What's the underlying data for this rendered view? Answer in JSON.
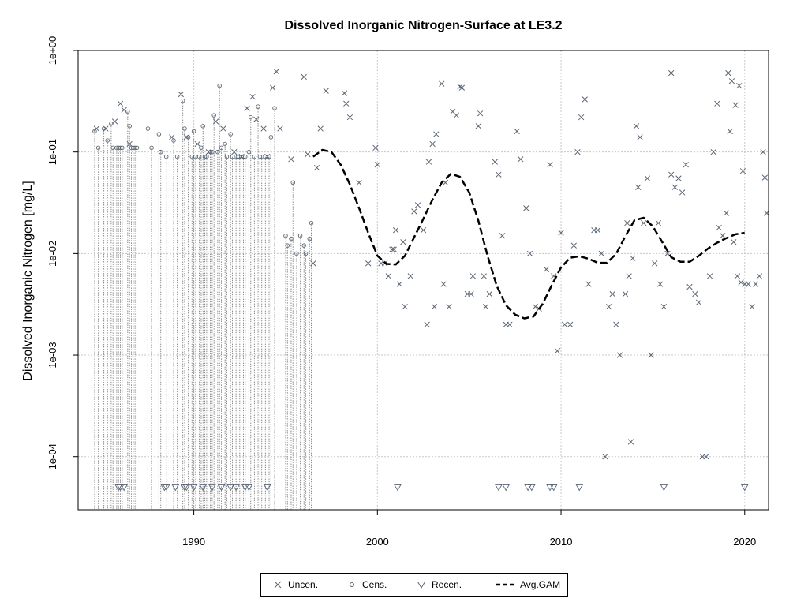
{
  "chart_data": {
    "type": "scatter",
    "title": "Dissolved Inorganic Nitrogen-Surface at LE3.2",
    "ylabel": "Dissolved Inorganic Nitrogen [mg/L]",
    "xlabel": "",
    "y_scale": "log",
    "ylim": [
      3e-05,
      1.0
    ],
    "xlim": [
      1983.7,
      2021.3
    ],
    "x_ticks": [
      1990,
      2000,
      2010,
      2020
    ],
    "x_tick_labels": [
      "1990",
      "2000",
      "2010",
      "2020"
    ],
    "y_ticks": [
      0.0001,
      0.001,
      0.01,
      0.1,
      1
    ],
    "y_tick_labels": [
      "1e-04",
      "1e-03",
      "1e-02",
      "1e-01",
      "1e+00"
    ],
    "grid": true,
    "legend_position": "bottom",
    "legend": [
      "Uncen.",
      "Cens.",
      "Recen.",
      "Avg.GAM"
    ],
    "colors": {
      "points": "#5b6675",
      "censored_lines": "#8c8c8c",
      "gam": "#000000",
      "grid": "#c8c8c8"
    },
    "uncensored": [
      [
        1984.7,
        0.17
      ],
      [
        1985.2,
        0.17
      ],
      [
        1985.7,
        0.2
      ],
      [
        1986.0,
        0.3
      ],
      [
        1986.2,
        0.26
      ],
      [
        1986.5,
        0.12
      ],
      [
        1988.8,
        0.14
      ],
      [
        1989.3,
        0.37
      ],
      [
        1989.6,
        0.14
      ],
      [
        1990.2,
        0.12
      ],
      [
        1990.8,
        0.1
      ],
      [
        1991.2,
        0.2
      ],
      [
        1991.6,
        0.17
      ],
      [
        1992.2,
        0.1
      ],
      [
        1992.6,
        0.09
      ],
      [
        1992.9,
        0.27
      ],
      [
        1993.2,
        0.35
      ],
      [
        1993.4,
        0.21
      ],
      [
        1993.8,
        0.17
      ],
      [
        1994.0,
        0.09
      ],
      [
        1994.3,
        0.43
      ],
      [
        1994.5,
        0.62
      ],
      [
        1994.7,
        0.17
      ],
      [
        1995.3,
        0.085
      ],
      [
        1996.0,
        0.55
      ],
      [
        1996.2,
        0.095
      ],
      [
        1996.5,
        0.008
      ],
      [
        1996.7,
        0.07
      ],
      [
        1996.9,
        0.17
      ],
      [
        1997.2,
        0.4
      ],
      [
        1998.2,
        0.38
      ],
      [
        1998.3,
        0.3
      ],
      [
        1998.5,
        0.22
      ],
      [
        1999.0,
        0.05
      ],
      [
        1999.5,
        0.008
      ],
      [
        1999.9,
        0.11
      ],
      [
        2000.0,
        0.075
      ],
      [
        2000.2,
        0.008
      ],
      [
        2000.4,
        0.008
      ],
      [
        2000.6,
        0.006
      ],
      [
        2000.8,
        0.011
      ],
      [
        2000.9,
        0.011
      ],
      [
        2001.0,
        0.017
      ],
      [
        2001.2,
        0.005
      ],
      [
        2001.4,
        0.013
      ],
      [
        2001.5,
        0.003
      ],
      [
        2001.8,
        0.006
      ],
      [
        2002.0,
        0.026
      ],
      [
        2002.2,
        0.03
      ],
      [
        2002.5,
        0.017
      ],
      [
        2002.7,
        0.002
      ],
      [
        2002.8,
        0.08
      ],
      [
        2003.0,
        0.12
      ],
      [
        2003.1,
        0.003
      ],
      [
        2003.2,
        0.15
      ],
      [
        2003.5,
        0.47
      ],
      [
        2003.6,
        0.005
      ],
      [
        2003.7,
        0.05
      ],
      [
        2003.9,
        0.003
      ],
      [
        2004.1,
        0.25
      ],
      [
        2004.3,
        0.23
      ],
      [
        2004.5,
        0.44
      ],
      [
        2004.6,
        0.43
      ],
      [
        2004.9,
        0.004
      ],
      [
        2005.1,
        0.004
      ],
      [
        2005.2,
        0.006
      ],
      [
        2005.5,
        0.18
      ],
      [
        2005.6,
        0.24
      ],
      [
        2005.8,
        0.006
      ],
      [
        2005.9,
        0.003
      ],
      [
        2006.1,
        0.004
      ],
      [
        2006.4,
        0.08
      ],
      [
        2006.6,
        0.06
      ],
      [
        2006.8,
        0.015
      ],
      [
        2007.0,
        0.002
      ],
      [
        2007.2,
        0.002
      ],
      [
        2007.6,
        0.16
      ],
      [
        2007.8,
        0.085
      ],
      [
        2008.1,
        0.028
      ],
      [
        2008.3,
        0.01
      ],
      [
        2008.6,
        0.003
      ],
      [
        2008.8,
        0.00286
      ],
      [
        2009.2,
        0.007
      ],
      [
        2009.4,
        0.075
      ],
      [
        2009.6,
        0.006
      ],
      [
        2009.8,
        0.0011
      ],
      [
        2010.0,
        0.016
      ],
      [
        2010.2,
        0.002
      ],
      [
        2010.5,
        0.002
      ],
      [
        2010.7,
        0.012
      ],
      [
        2010.9,
        0.1
      ],
      [
        2011.1,
        0.22
      ],
      [
        2011.3,
        0.33
      ],
      [
        2011.5,
        0.005
      ],
      [
        2011.8,
        0.017
      ],
      [
        2012.0,
        0.017
      ],
      [
        2012.2,
        0.01
      ],
      [
        2012.6,
        0.003
      ],
      [
        2012.8,
        0.004
      ],
      [
        2013.0,
        0.002
      ],
      [
        2013.2,
        0.001
      ],
      [
        2013.5,
        0.004
      ],
      [
        2013.7,
        0.006
      ],
      [
        2013.8,
        0.00014
      ],
      [
        2014.1,
        0.18
      ],
      [
        2014.3,
        0.14
      ],
      [
        2014.5,
        0.02
      ],
      [
        2014.7,
        0.055
      ],
      [
        2014.9,
        0.001
      ],
      [
        2015.1,
        0.008
      ],
      [
        2015.3,
        0.02
      ],
      [
        2015.4,
        0.005
      ],
      [
        2015.6,
        0.003
      ],
      [
        2015.8,
        0.01
      ],
      [
        2016.0,
        0.06
      ],
      [
        2016.2,
        0.045
      ],
      [
        2016.4,
        0.055
      ],
      [
        2016.6,
        0.04
      ],
      [
        2016.8,
        0.075
      ],
      [
        2017.0,
        0.0047
      ],
      [
        2017.3,
        0.004
      ],
      [
        2017.5,
        0.0033
      ],
      [
        2017.7,
        0.0001
      ],
      [
        2017.9,
        0.0001
      ],
      [
        2018.1,
        0.006
      ],
      [
        2018.3,
        0.1
      ],
      [
        2018.5,
        0.3
      ],
      [
        2018.6,
        0.018
      ],
      [
        2018.8,
        0.015
      ],
      [
        2019.0,
        0.025
      ],
      [
        2019.2,
        0.16
      ],
      [
        2019.4,
        0.013
      ],
      [
        2019.6,
        0.006
      ],
      [
        2019.8,
        0.0052
      ],
      [
        2020.0,
        0.005
      ],
      [
        2020.2,
        0.005
      ],
      [
        2020.4,
        0.003
      ],
      [
        2020.6,
        0.005
      ],
      [
        2020.8,
        0.006
      ],
      [
        2021.0,
        0.1
      ],
      [
        2021.1,
        0.056
      ],
      [
        2021.2,
        0.025
      ],
      [
        2019.1,
        0.6
      ],
      [
        2019.3,
        0.5
      ],
      [
        2019.5,
        0.29
      ],
      [
        2019.7,
        0.45
      ],
      [
        2019.9,
        0.065
      ],
      [
        2016.0,
        0.6
      ],
      [
        2014.2,
        0.045
      ],
      [
        2013.9,
        0.009
      ],
      [
        2013.6,
        0.02
      ],
      [
        2012.4,
        0.0001
      ]
    ],
    "censored_tops": [
      [
        1984.6,
        0.16
      ],
      [
        1984.8,
        0.11
      ],
      [
        1985.1,
        0.17
      ],
      [
        1985.3,
        0.13
      ],
      [
        1985.5,
        0.19
      ],
      [
        1985.6,
        0.11
      ],
      [
        1985.8,
        0.11
      ],
      [
        1985.9,
        0.11
      ],
      [
        1986.0,
        0.11
      ],
      [
        1986.1,
        0.11
      ],
      [
        1986.4,
        0.25
      ],
      [
        1986.5,
        0.18
      ],
      [
        1986.6,
        0.11
      ],
      [
        1986.7,
        0.11
      ],
      [
        1986.8,
        0.11
      ],
      [
        1986.9,
        0.11
      ],
      [
        1987.5,
        0.17
      ],
      [
        1987.7,
        0.11
      ],
      [
        1988.1,
        0.15
      ],
      [
        1988.2,
        0.1
      ],
      [
        1988.5,
        0.09
      ],
      [
        1988.9,
        0.13
      ],
      [
        1989.1,
        0.09
      ],
      [
        1989.4,
        0.32
      ],
      [
        1989.5,
        0.17
      ],
      [
        1989.7,
        0.14
      ],
      [
        1989.9,
        0.09
      ],
      [
        1990.0,
        0.16
      ],
      [
        1990.1,
        0.09
      ],
      [
        1990.3,
        0.09
      ],
      [
        1990.4,
        0.11
      ],
      [
        1990.5,
        0.18
      ],
      [
        1990.6,
        0.09
      ],
      [
        1990.7,
        0.09
      ],
      [
        1990.9,
        0.1
      ],
      [
        1991.0,
        0.1
      ],
      [
        1991.1,
        0.23
      ],
      [
        1991.3,
        0.1
      ],
      [
        1991.4,
        0.45
      ],
      [
        1991.5,
        0.11
      ],
      [
        1991.7,
        0.12
      ],
      [
        1991.8,
        0.09
      ],
      [
        1992.0,
        0.15
      ],
      [
        1992.1,
        0.09
      ],
      [
        1992.3,
        0.09
      ],
      [
        1992.4,
        0.09
      ],
      [
        1992.5,
        0.09
      ],
      [
        1992.7,
        0.09
      ],
      [
        1992.8,
        0.09
      ],
      [
        1993.0,
        0.1
      ],
      [
        1993.1,
        0.22
      ],
      [
        1993.3,
        0.09
      ],
      [
        1993.5,
        0.28
      ],
      [
        1993.6,
        0.09
      ],
      [
        1993.7,
        0.09
      ],
      [
        1993.9,
        0.09
      ],
      [
        1994.1,
        0.09
      ],
      [
        1994.2,
        0.14
      ],
      [
        1994.4,
        0.27
      ],
      [
        1995.0,
        0.015
      ],
      [
        1995.1,
        0.012
      ],
      [
        1995.3,
        0.014
      ],
      [
        1995.4,
        0.05
      ],
      [
        1995.6,
        0.01
      ],
      [
        1995.8,
        0.015
      ],
      [
        1996.0,
        0.012
      ],
      [
        1996.1,
        0.01
      ],
      [
        1996.3,
        0.014
      ],
      [
        1996.4,
        0.02
      ]
    ],
    "recensored": [
      [
        1985.9,
        5e-05
      ],
      [
        1986.0,
        5e-05
      ],
      [
        1986.2,
        5e-05
      ],
      [
        1988.4,
        5e-05
      ],
      [
        1988.5,
        5e-05
      ],
      [
        1989.0,
        5e-05
      ],
      [
        1989.5,
        5e-05
      ],
      [
        1989.6,
        5e-05
      ],
      [
        1990.0,
        5e-05
      ],
      [
        1990.5,
        5e-05
      ],
      [
        1991.0,
        5e-05
      ],
      [
        1991.5,
        5e-05
      ],
      [
        1992.0,
        5e-05
      ],
      [
        1992.3,
        5e-05
      ],
      [
        1992.8,
        5e-05
      ],
      [
        1993.0,
        5e-05
      ],
      [
        1994.0,
        5e-05
      ],
      [
        2001.1,
        5e-05
      ],
      [
        2006.6,
        5e-05
      ],
      [
        2007.0,
        5e-05
      ],
      [
        2008.2,
        5e-05
      ],
      [
        2008.4,
        5e-05
      ],
      [
        2009.4,
        5e-05
      ],
      [
        2009.6,
        5e-05
      ],
      [
        2011.0,
        5e-05
      ],
      [
        2015.6,
        5e-05
      ],
      [
        2020.0,
        5e-05
      ]
    ],
    "gam_x": [
      1996.5,
      1997.0,
      1997.5,
      1998.0,
      1998.5,
      1999.0,
      1999.5,
      2000.0,
      2000.5,
      2001.0,
      2001.5,
      2002.0,
      2002.5,
      2003.0,
      2003.5,
      2004.0,
      2004.5,
      2005.0,
      2005.5,
      2006.0,
      2006.5,
      2007.0,
      2007.5,
      2008.0,
      2008.5,
      2009.0,
      2009.5,
      2010.0,
      2010.5,
      2011.0,
      2011.5,
      2012.0,
      2012.5,
      2013.0,
      2013.5,
      2014.0,
      2014.5,
      2015.0,
      2015.5,
      2016.0,
      2016.5,
      2017.0,
      2017.5,
      2018.0,
      2018.5,
      2019.0,
      2019.5,
      2020.0
    ],
    "gam_y": [
      0.09,
      0.105,
      0.1,
      0.075,
      0.048,
      0.028,
      0.016,
      0.0095,
      0.0079,
      0.0078,
      0.0095,
      0.0145,
      0.022,
      0.034,
      0.05,
      0.061,
      0.057,
      0.04,
      0.021,
      0.0095,
      0.0048,
      0.0031,
      0.0025,
      0.0023,
      0.0024,
      0.0032,
      0.0049,
      0.0073,
      0.0091,
      0.0094,
      0.0089,
      0.0081,
      0.0081,
      0.0099,
      0.0148,
      0.0213,
      0.0225,
      0.0185,
      0.0131,
      0.0092,
      0.0083,
      0.0083,
      0.0095,
      0.0112,
      0.0128,
      0.0142,
      0.0155,
      0.016
    ]
  }
}
